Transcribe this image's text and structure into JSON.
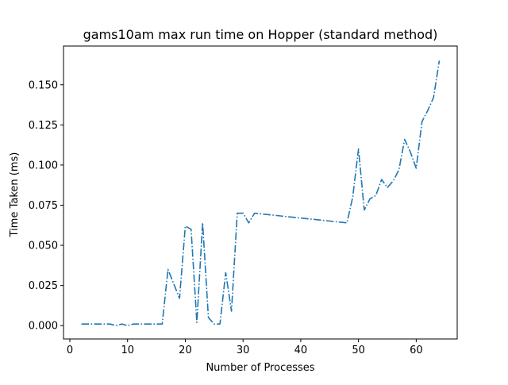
{
  "chart_data": {
    "type": "line",
    "title": "gams10am max run time on Hopper (standard method)",
    "xlabel": "Number of Processes",
    "ylabel": "Time Taken (ms)",
    "xlim": [
      -1.1,
      67.1
    ],
    "ylim": [
      -0.0083,
      0.1741
    ],
    "xticks": [
      0,
      10,
      20,
      30,
      40,
      50,
      60
    ],
    "xtick_labels": [
      "0",
      "10",
      "20",
      "30",
      "40",
      "50",
      "60"
    ],
    "yticks": [
      0.0,
      0.025,
      0.05,
      0.075,
      0.1,
      0.125,
      0.15
    ],
    "ytick_labels": [
      "0.000",
      "0.025",
      "0.050",
      "0.075",
      "0.100",
      "0.125",
      "0.150"
    ],
    "grid": false,
    "line_style": "dash-dot",
    "color": "#1f77b4",
    "series": [
      {
        "x": [
          2,
          3,
          4,
          5,
          6,
          7,
          8,
          9,
          10,
          11,
          12,
          13,
          14,
          15,
          16,
          17,
          18,
          19,
          20,
          21,
          22,
          23,
          24,
          25,
          26,
          27,
          28,
          29,
          30,
          31,
          32,
          48,
          49,
          50,
          51,
          52,
          53,
          54,
          55,
          56,
          57,
          58,
          59,
          60,
          61,
          62,
          63,
          64
        ],
        "y": [
          0.001,
          0.001,
          0.001,
          0.001,
          0.001,
          0.001,
          0.0,
          0.001,
          0.0,
          0.001,
          0.001,
          0.001,
          0.001,
          0.001,
          0.001,
          0.035,
          0.026,
          0.017,
          0.062,
          0.06,
          0.002,
          0.064,
          0.005,
          0.001,
          0.001,
          0.033,
          0.009,
          0.07,
          0.07,
          0.064,
          0.07,
          0.064,
          0.08,
          0.11,
          0.072,
          0.079,
          0.081,
          0.091,
          0.086,
          0.09,
          0.097,
          0.116,
          0.108,
          0.098,
          0.127,
          0.134,
          0.142,
          0.165
        ]
      }
    ]
  }
}
